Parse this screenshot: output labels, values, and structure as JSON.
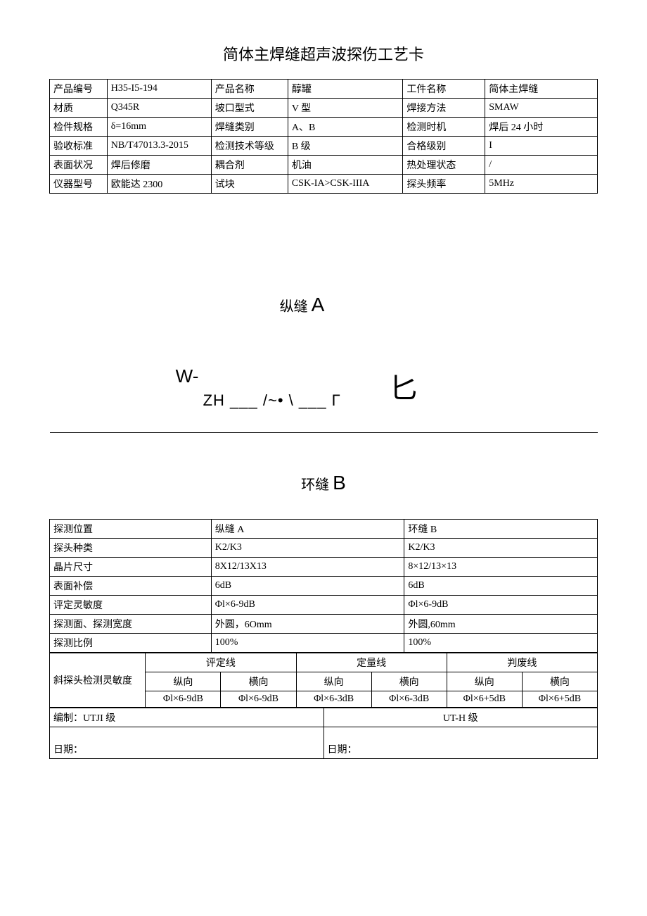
{
  "title": "简体主焊缝超声波探伤工艺卡",
  "header_rows": [
    {
      "l1": "产品编号",
      "v1": "H35-I5-194",
      "l2": "产品名称",
      "v2": "醇罐",
      "l3": "工件名称",
      "v3": "简体主焊缝"
    },
    {
      "l1": "材质",
      "v1": "Q345R",
      "l2": "坡口型式",
      "v2": "V 型",
      "l3": "焊接方法",
      "v3": "SMAW"
    },
    {
      "l1": "检件规格",
      "v1": "  δ=16mm",
      "l2": "焊缝类别",
      "v2": "A、B",
      "l3": "检测时机",
      "v3": "焊后 24 小时"
    },
    {
      "l1": "验收标准",
      "v1": "NB/T47013.3-2015",
      "l2": "检测技术等级",
      "v2": "B 级",
      "l3": "合格级别",
      "v3": "I"
    },
    {
      "l1": "表面状况",
      "v1": "焊后修磨",
      "l2": "耦合剂",
      "v2": "机油",
      "l3": "热处理状态",
      "v3": "/"
    },
    {
      "l1": "仪器型号",
      "v1": "欧能达 2300",
      "l2": "试块",
      "v2": "CSK-IA>CSK-IIIA",
      "l3": "探头频率",
      "v3": "5MHz"
    }
  ],
  "diagram": {
    "label_a_prefix": "纵缝 ",
    "label_a_big": "A",
    "w_text": "W-",
    "zh_text": "ZH ___ /~• \\ ___ Γ",
    "shape_text": "匕"
  },
  "section_b_prefix": "环缝 ",
  "section_b_big": "B",
  "detection_rows": [
    {
      "label": "探测位置",
      "col_a": "纵缝 A",
      "col_b": "环缝 B"
    },
    {
      "label": "探头种类",
      "col_a": "K2/K3",
      "col_b": "K2/K3"
    },
    {
      "label": "晶片尺寸",
      "col_a": "8X12/13X13",
      "col_b": "8×12/13×13"
    },
    {
      "label": "表面补偿",
      "col_a": "6dB",
      "col_b": "6dB"
    },
    {
      "label": "评定灵敏度",
      "col_a": "Φl×6-9dB",
      "col_b": "Φl×6-9dB"
    },
    {
      "label": "探测面、探测宽度",
      "col_a": "外圆，6Omm",
      "col_b": "外圆,60mm"
    },
    {
      "label": "探测比例",
      "col_a": "100%",
      "col_b": "100%"
    }
  ],
  "sensitivity": {
    "row_label": "斜探头检测灵敏度",
    "groups": [
      "评定线",
      "定量线",
      "判废线"
    ],
    "sub_headers": [
      "纵向",
      "横向",
      "纵向",
      "横向",
      "纵向",
      "横向"
    ],
    "values": [
      "Φl×6-9dB",
      "Φl×6-9dB",
      "Φl×6-3dB",
      "Φl×6-3dB",
      "Φl×6+5dB",
      "Φl×6+5dB"
    ]
  },
  "footer": {
    "made_by": "编制：UTJI 级",
    "level": "UT-H 级",
    "date_left": "日期：",
    "date_right": "日期："
  },
  "col_widths": {
    "header": [
      "10.5%",
      "19%",
      "14%",
      "21%",
      "15%",
      "20.5%"
    ],
    "detection_label": "29.5%",
    "detection_col": "35.25%"
  }
}
